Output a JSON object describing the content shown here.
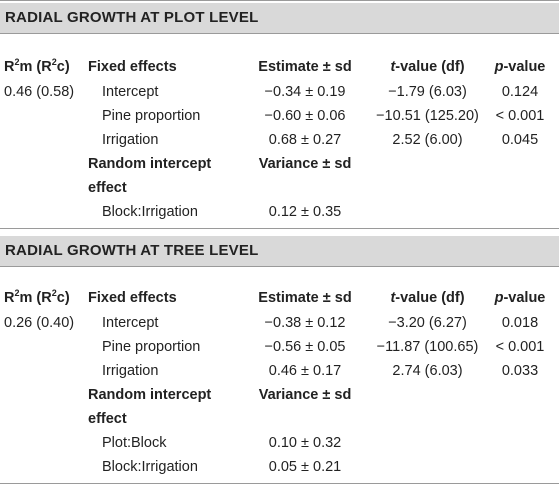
{
  "sections": [
    {
      "title": "RADIAL GROWTH AT PLOT LEVEL",
      "r2_value": "0.46 (0.58)",
      "rows": [
        {
          "label": "Intercept",
          "estimate": "−0.34 ± 0.19",
          "tvalue": "−1.79 (6.03)",
          "pvalue": "0.124"
        },
        {
          "label": "Pine proportion",
          "estimate": "−0.60 ± 0.06",
          "tvalue": "−10.51 (125.20)",
          "pvalue": "< 0.001"
        },
        {
          "label": "Irrigation",
          "estimate": "0.68 ± 0.27",
          "tvalue": "2.52 (6.00)",
          "pvalue": "0.045"
        }
      ],
      "random": [
        {
          "label": "Block:Irrigation",
          "variance": "0.12 ± 0.35"
        }
      ]
    },
    {
      "title": "RADIAL GROWTH AT TREE LEVEL",
      "r2_value": "0.26 (0.40)",
      "rows": [
        {
          "label": "Intercept",
          "estimate": "−0.38 ± 0.12",
          "tvalue": "−3.20 (6.27)",
          "pvalue": "0.018"
        },
        {
          "label": "Pine proportion",
          "estimate": "−0.56 ± 0.05",
          "tvalue": "−11.87 (100.65)",
          "pvalue": "< 0.001"
        },
        {
          "label": "Irrigation",
          "estimate": "0.46 ± 0.17",
          "tvalue": "2.74 (6.03)",
          "pvalue": "0.033"
        }
      ],
      "random": [
        {
          "label": "Plot:Block",
          "variance": "0.10 ± 0.32"
        },
        {
          "label": "Block:Irrigation",
          "variance": "0.05 ± 0.21"
        }
      ]
    }
  ],
  "headers": {
    "r2_a": "R",
    "r2_sup1": "2",
    "r2_b": "m (R",
    "r2_sup2": "2",
    "r2_c": "c)",
    "fixed": "Fixed effects",
    "estimate": "Estimate ± sd",
    "t_italic": "t",
    "t_rest": "-value (df)",
    "p_italic": "p",
    "p_rest": "-value",
    "random_line1": "Random intercept",
    "random_line2": "effect",
    "variance": "Variance ± sd"
  }
}
